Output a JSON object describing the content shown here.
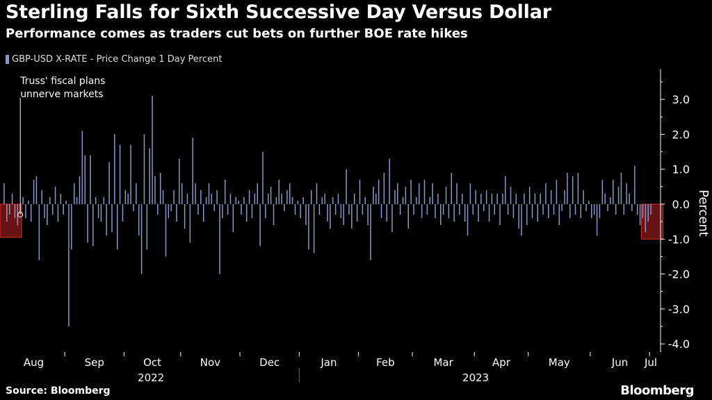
{
  "header": {
    "title": "Sterling Falls for Sixth Successive Day Versus Dollar",
    "subtitle": "Performance comes as traders cut bets on further BOE rate hikes"
  },
  "footer": {
    "source": "Source: Bloomberg",
    "brand": "Bloomberg"
  },
  "colors": {
    "bar": "#8b97c4",
    "highlight_fill": "#8b1a1a",
    "highlight_stroke": "#d32f2f",
    "axis": "#ffffff",
    "text": "#ffffff"
  },
  "chart_data": {
    "type": "bar",
    "title": "Sterling Falls for Sixth Successive Day Versus Dollar",
    "subtitle": "Performance comes as traders cut bets on further BOE rate hikes",
    "legend": [
      "GBP-USD X-RATE - Price Change 1 Day Percent"
    ],
    "legend_position": "top-left",
    "ylabel": "Percent",
    "xlabel": "",
    "ylim": [
      -4.0,
      3.8
    ],
    "yticks": [
      3.0,
      2.0,
      1.0,
      0.0,
      -1.0,
      -2.0,
      -3.0,
      -4.0
    ],
    "ytick_labels": [
      "3.0",
      "2.0",
      "1.0",
      "0.0",
      "-1.0",
      "-2.0",
      "-3.0",
      "-4.0"
    ],
    "grid": false,
    "months": [
      "Aug",
      "Sep",
      "Oct",
      "Nov",
      "Dec",
      "Jan",
      "Feb",
      "Mar",
      "Apr",
      "May",
      "Jun",
      "Jul"
    ],
    "years": [
      "2022",
      "2023"
    ],
    "annotations": [
      {
        "text": [
          "Truss' fiscal plans",
          "unnerve markets"
        ],
        "bar_index": 6,
        "y": -0.3
      }
    ],
    "highlight_ranges": [
      {
        "start": 0,
        "end": 5,
        "ymin": -0.95,
        "ymax": 0.0
      },
      {
        "start": 238,
        "end": 243,
        "ymin": -1.0,
        "ymax": 0.0
      }
    ],
    "series": [
      {
        "name": "GBP-USD X-RATE - Price Change 1 Day Percent",
        "start_date": "2022-07-31",
        "frequency": "business days",
        "values": [
          0.6,
          -0.5,
          -0.3,
          0.3,
          -0.4,
          -0.6,
          -0.3,
          0.2,
          -0.4,
          0.1,
          -0.5,
          0.7,
          0.8,
          -1.6,
          0.4,
          -0.4,
          -0.6,
          0.2,
          -0.3,
          0.5,
          -0.5,
          0.3,
          -0.3,
          0.1,
          -3.5,
          -1.3,
          0.6,
          0.2,
          0.8,
          2.1,
          1.4,
          -1.1,
          1.4,
          -1.2,
          0.2,
          -0.4,
          -0.5,
          0.2,
          -0.9,
          1.2,
          -0.8,
          2.0,
          -1.3,
          1.7,
          -0.5,
          0.4,
          0.3,
          1.7,
          -0.2,
          0.6,
          -0.9,
          -2.0,
          2.0,
          -1.3,
          1.6,
          3.1,
          0.8,
          -0.3,
          0.9,
          0.4,
          -1.5,
          -0.4,
          -0.2,
          0.4,
          -0.5,
          1.3,
          0.6,
          -0.7,
          0.3,
          -1.1,
          1.9,
          0.6,
          -0.3,
          0.4,
          -0.5,
          0.2,
          0.6,
          0.3,
          -0.2,
          0.4,
          -2.0,
          -0.4,
          0.7,
          -0.3,
          0.3,
          -0.8,
          0.2,
          0.1,
          -0.3,
          0.2,
          -0.5,
          0.4,
          -0.4,
          0.3,
          0.6,
          -1.2,
          1.5,
          -0.4,
          0.3,
          0.5,
          -0.6,
          0.2,
          0.7,
          0.3,
          -0.2,
          0.4,
          0.6,
          0.2,
          -0.3,
          0.1,
          -0.4,
          0.2,
          -0.6,
          -1.3,
          0.4,
          -1.4,
          0.6,
          -0.3,
          0.2,
          0.3,
          -0.5,
          -0.7,
          0.2,
          -0.3,
          0.3,
          -0.4,
          -0.6,
          1.0,
          -0.3,
          -0.7,
          0.3,
          -0.5,
          0.7,
          -0.3,
          0.2,
          -0.6,
          -1.6,
          0.5,
          0.3,
          0.7,
          -0.4,
          0.9,
          -0.5,
          1.3,
          -0.8,
          0.4,
          0.6,
          -0.3,
          0.2,
          0.5,
          -0.7,
          0.7,
          -0.3,
          0.2,
          0.6,
          -0.4,
          0.7,
          -0.3,
          0.2,
          0.6,
          -0.4,
          0.3,
          -0.6,
          -0.3,
          0.5,
          -0.4,
          0.9,
          -0.5,
          0.6,
          -0.3,
          0.3,
          -0.5,
          -0.9,
          0.6,
          -0.3,
          0.4,
          -0.5,
          0.3,
          -0.2,
          0.4,
          -0.5,
          0.3,
          -0.3,
          0.3,
          -0.6,
          0.3,
          0.8,
          -0.3,
          0.5,
          -0.4,
          0.3,
          -0.7,
          -0.9,
          0.3,
          -0.6,
          0.5,
          -0.4,
          0.3,
          -0.5,
          0.3,
          -0.3,
          0.6,
          -0.4,
          0.4,
          -0.3,
          0.7,
          -0.6,
          -0.2,
          0.4,
          0.9,
          -0.4,
          0.8,
          -0.3,
          0.9,
          -0.4,
          0.4,
          -0.2,
          0.1,
          -0.4,
          -0.3,
          -0.9,
          -0.4,
          0.7,
          0.3,
          -0.2,
          0.2,
          0.7,
          -0.3,
          0.5,
          0.9,
          -0.3,
          0.6,
          0.3,
          -0.2,
          1.1,
          -0.3,
          -0.6,
          -0.4,
          -0.8,
          -0.5,
          -0.3
        ]
      }
    ]
  }
}
